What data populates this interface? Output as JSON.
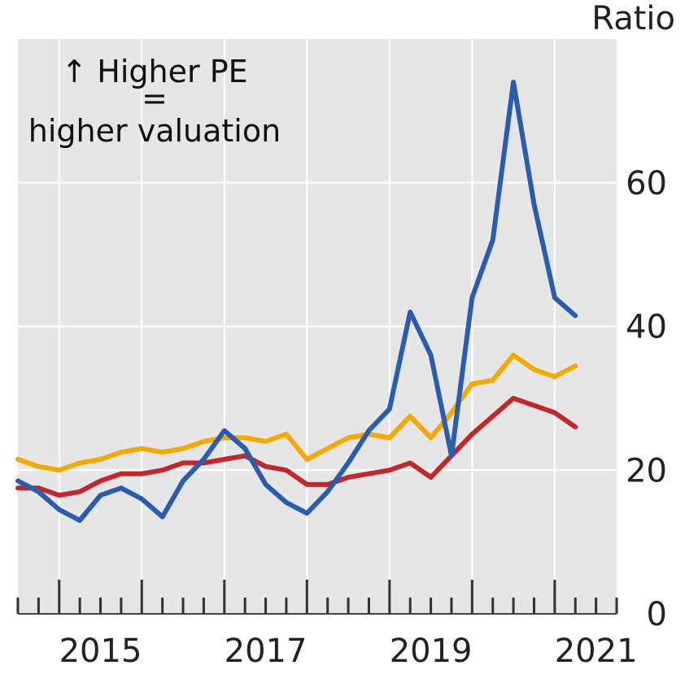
{
  "chart_data": {
    "type": "line",
    "ylabel": "Ratio",
    "ylim": [
      0,
      80
    ],
    "yticks": [
      "0",
      "20",
      "40",
      "60"
    ],
    "xlim": [
      2014.5,
      2021.75
    ],
    "xticks": [
      "2015",
      "2017",
      "2019",
      "2021"
    ],
    "grid": true,
    "annotation": {
      "line1": "↑ Higher PE",
      "line2": "=",
      "line3": "higher valuation"
    },
    "x": [
      2014.5,
      2014.75,
      2015,
      2015.25,
      2015.5,
      2015.75,
      2016,
      2016.25,
      2016.5,
      2016.75,
      2017,
      2017.25,
      2017.5,
      2017.75,
      2018,
      2018.25,
      2018.5,
      2018.75,
      2019,
      2019.25,
      2019.5,
      2019.75,
      2020,
      2020.25,
      2020.5,
      2020.75,
      2021,
      2021.25
    ],
    "series": [
      {
        "color": "#2a5db0",
        "values": [
          18.5,
          17,
          14.5,
          13,
          16.5,
          17.5,
          16,
          13.5,
          18.5,
          21.5,
          25.5,
          23,
          18,
          15.5,
          14,
          17,
          21,
          25.5,
          28.5,
          42,
          36,
          22,
          44,
          52,
          74,
          57,
          44,
          41.5
        ]
      },
      {
        "color": "#f2a900",
        "values": [
          21.5,
          20.5,
          20,
          21,
          21.5,
          22.5,
          23,
          22.5,
          23,
          24,
          24.5,
          24.5,
          24,
          25,
          21.5,
          23,
          24.5,
          25,
          24.5,
          27.5,
          24.5,
          28,
          32,
          32.5,
          36,
          34,
          33,
          34.5
        ]
      },
      {
        "color": "#c0282d",
        "values": [
          17.5,
          17.5,
          16.5,
          17,
          18.5,
          19.5,
          19.5,
          20,
          21,
          21,
          21.5,
          22,
          20.5,
          20,
          18,
          18,
          19,
          19.5,
          20,
          21,
          19,
          22,
          25,
          27.5,
          30,
          29,
          28,
          26
        ]
      }
    ]
  }
}
